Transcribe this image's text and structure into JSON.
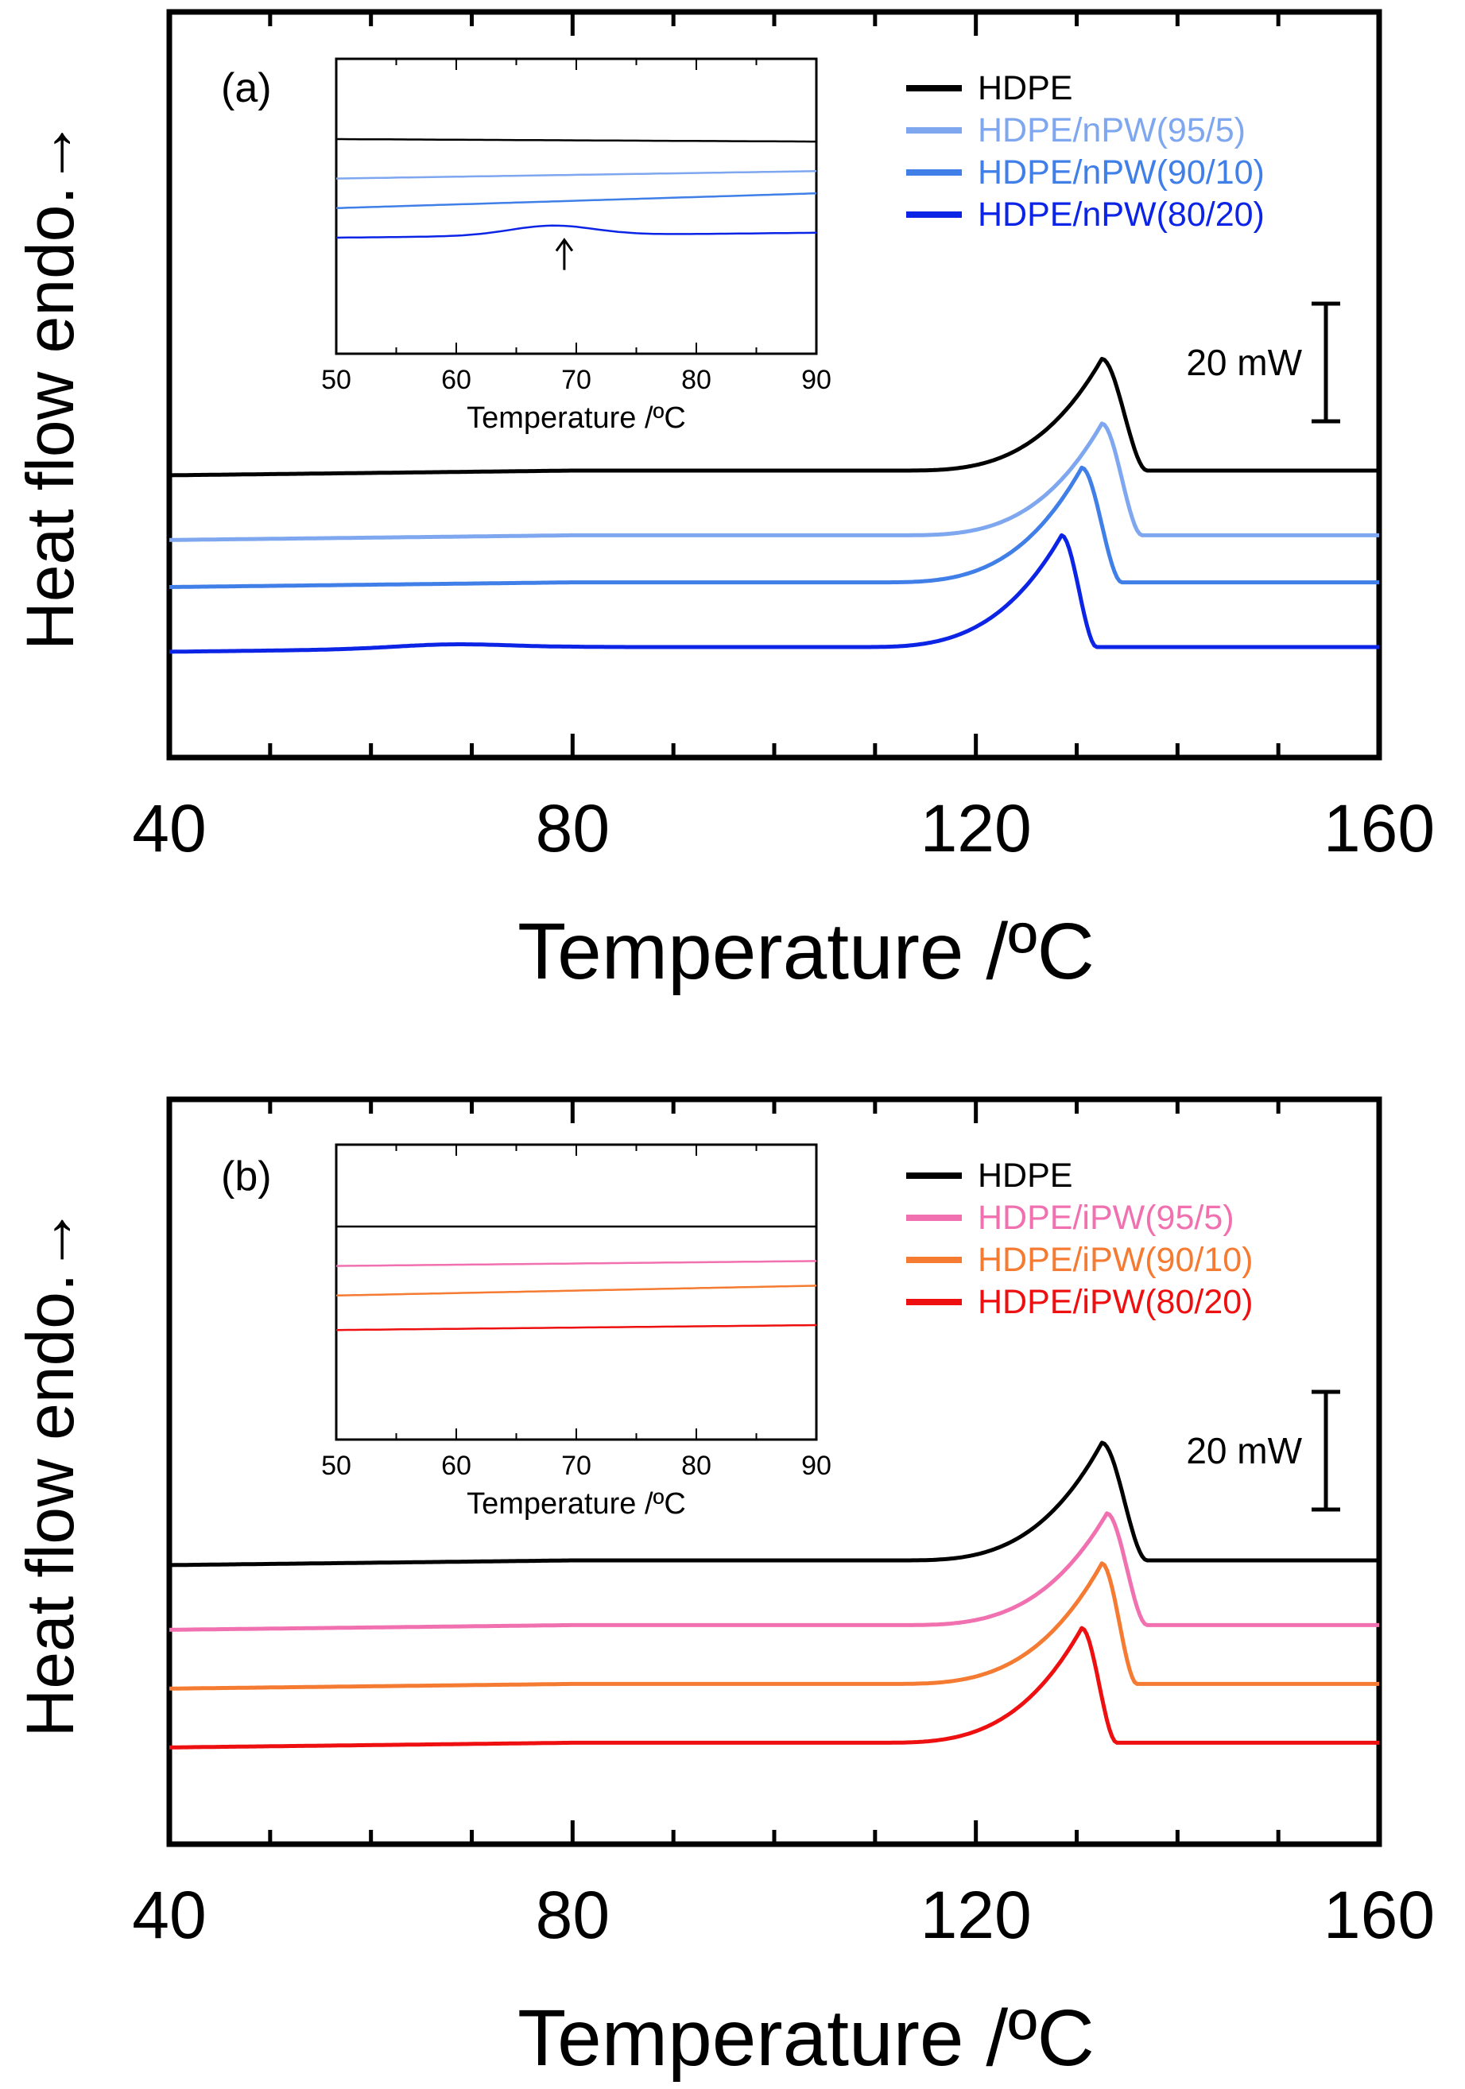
{
  "chart_data": [
    {
      "type": "line",
      "panel_label": "(a)",
      "xlabel": "Temperature /ºC",
      "ylabel": "Heat flow endo.→",
      "xlim": [
        40,
        160
      ],
      "xticks": [
        "40",
        "80",
        "120",
        "160"
      ],
      "grid": false,
      "legend_position": "top-right",
      "scale_bar_label": "20 mW",
      "scale_bar_mW": 20,
      "series": [
        {
          "name": "HDPE",
          "color": "#000000",
          "baseline_mW": 0,
          "onset_C": 112,
          "peak_C": 132.5,
          "peak_height_mW": 19,
          "end_C": 137
        },
        {
          "name": "HDPE/nPW(95/5)",
          "color": "#7ea7ef",
          "baseline_mW": -11,
          "onset_C": 112,
          "peak_C": 132.5,
          "peak_height_mW": 19,
          "end_C": 136.5
        },
        {
          "name": "HDPE/nPW(90/10)",
          "color": "#3f7fe7",
          "baseline_mW": -19,
          "onset_C": 110,
          "peak_C": 130.5,
          "peak_height_mW": 19.5,
          "end_C": 134.5
        },
        {
          "name": "HDPE/nPW(80/20)",
          "color": "#0b24e6",
          "baseline_mW": -30,
          "onset_C": 108,
          "peak_C": 128.5,
          "peak_height_mW": 19,
          "end_C": 132,
          "small_peak_C": 68,
          "small_peak_mW": 0.7
        }
      ],
      "inset": {
        "xlabel": "Temperature /ºC",
        "xlim": [
          50,
          90
        ],
        "xticks": [
          "50",
          "60",
          "70",
          "80",
          "90"
        ],
        "arrow_at_C": 69,
        "series": [
          {
            "name": "HDPE",
            "color": "#000000",
            "start": 0,
            "end": -0.5
          },
          {
            "name": "HDPE/nPW(95/5)",
            "color": "#7ea7ef",
            "start": -8,
            "end": -6.5
          },
          {
            "name": "HDPE/nPW(90/10)",
            "color": "#3f7fe7",
            "start": -14,
            "end": -11
          },
          {
            "name": "HDPE/nPW(80/20)",
            "color": "#0b24e6",
            "start": -20,
            "end": -19,
            "bump_C": 68,
            "bump_height": 2
          }
        ]
      }
    },
    {
      "type": "line",
      "panel_label": "(b)",
      "xlabel": "Temperature /ºC",
      "ylabel": "Heat flow endo.→",
      "xlim": [
        40,
        160
      ],
      "xticks": [
        "40",
        "80",
        "120",
        "160"
      ],
      "grid": false,
      "legend_position": "top-right",
      "scale_bar_label": "20 mW",
      "scale_bar_mW": 20,
      "series": [
        {
          "name": "HDPE",
          "color": "#000000",
          "baseline_mW": 0,
          "onset_C": 112,
          "peak_C": 132.5,
          "peak_height_mW": 20,
          "end_C": 137
        },
        {
          "name": "HDPE/iPW(95/5)",
          "color": "#f070b0",
          "baseline_mW": -11,
          "onset_C": 112,
          "peak_C": 133,
          "peak_height_mW": 19,
          "end_C": 137
        },
        {
          "name": "HDPE/iPW(90/10)",
          "color": "#f57a32",
          "baseline_mW": -21,
          "onset_C": 111,
          "peak_C": 132.5,
          "peak_height_mW": 20.5,
          "end_C": 136
        },
        {
          "name": "HDPE/iPW(80/20)",
          "color": "#ee1010",
          "baseline_mW": -31,
          "onset_C": 110,
          "peak_C": 130.5,
          "peak_height_mW": 19.5,
          "end_C": 134
        }
      ],
      "inset": {
        "xlabel": "Temperature /ºC",
        "xlim": [
          50,
          90
        ],
        "xticks": [
          "50",
          "60",
          "70",
          "80",
          "90"
        ],
        "series": [
          {
            "name": "HDPE",
            "color": "#000000",
            "start": 0,
            "end": 0
          },
          {
            "name": "HDPE/iPW(95/5)",
            "color": "#f070b0",
            "start": -8,
            "end": -7
          },
          {
            "name": "HDPE/iPW(90/10)",
            "color": "#f57a32",
            "start": -14,
            "end": -12
          },
          {
            "name": "HDPE/iPW(80/20)",
            "color": "#ee1010",
            "start": -21,
            "end": -20
          }
        ]
      }
    }
  ]
}
